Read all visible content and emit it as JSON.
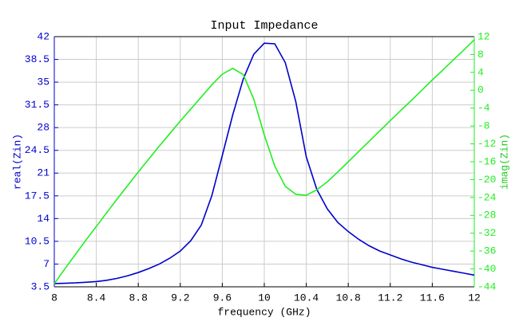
{
  "chart_data": {
    "type": "line",
    "title": "Input Impedance",
    "x_label": "frequency (GHz)",
    "y_label": "real(Zin)",
    "y2_label": "imag(Zin)",
    "x": [
      8.0,
      8.1,
      8.2,
      8.3,
      8.4,
      8.5,
      8.6,
      8.7,
      8.8,
      8.9,
      9.0,
      9.1,
      9.2,
      9.3,
      9.4,
      9.5,
      9.6,
      9.7,
      9.8,
      9.9,
      10.0,
      10.1,
      10.2,
      10.3,
      10.4,
      10.5,
      10.6,
      10.7,
      10.8,
      10.9,
      11.0,
      11.1,
      11.2,
      11.3,
      11.4,
      11.5,
      11.6,
      11.7,
      11.8,
      11.9,
      12.0
    ],
    "series": [
      {
        "name": "real(Zin)",
        "color": "#0000cc",
        "axis": "y",
        "values": [
          4.0,
          4.05,
          4.1,
          4.2,
          4.3,
          4.5,
          4.8,
          5.2,
          5.7,
          6.3,
          7.0,
          7.9,
          9.0,
          10.6,
          13.0,
          17.5,
          23.7,
          30,
          35.5,
          39.3,
          41.0,
          40.9,
          38,
          32,
          23.5,
          18.5,
          15.5,
          13.4,
          12.0,
          10.8,
          9.8,
          9.0,
          8.4,
          7.8,
          7.3,
          6.9,
          6.5,
          6.2,
          5.9,
          5.6,
          5.3
        ]
      },
      {
        "name": "imag(Zin)",
        "color": "#22ee22",
        "axis": "y2",
        "values": [
          -43.3,
          -40,
          -36.8,
          -33.6,
          -30.5,
          -27.4,
          -24.3,
          -21.3,
          -18.3,
          -15.4,
          -12.5,
          -9.7,
          -6.9,
          -4.2,
          -1.5,
          1.2,
          3.6,
          4.9,
          3.5,
          -2,
          -10,
          -17,
          -21.5,
          -23.3,
          -23.5,
          -22.3,
          -20.5,
          -18.3,
          -16,
          -13.7,
          -11.4,
          -9.1,
          -6.8,
          -4.5,
          -2.3,
          0,
          2.3,
          4.5,
          6.8,
          9.0,
          11.3
        ]
      }
    ],
    "xlim": [
      8,
      12
    ],
    "xticks": [
      8,
      8.4,
      8.8,
      9.2,
      9.6,
      10,
      10.4,
      10.8,
      11.2,
      11.6,
      12
    ],
    "ylim": [
      3.5,
      42
    ],
    "yticks": [
      3.5,
      7,
      10.5,
      14,
      17.5,
      21,
      24.5,
      28,
      31.5,
      35,
      38.5,
      42
    ],
    "y2lim": [
      -44,
      12
    ],
    "y2ticks": [
      -44,
      -40,
      -36,
      -32,
      -28,
      -24,
      -20,
      -16,
      -12,
      -8,
      -4,
      0,
      4,
      8,
      12
    ],
    "grid": true
  }
}
